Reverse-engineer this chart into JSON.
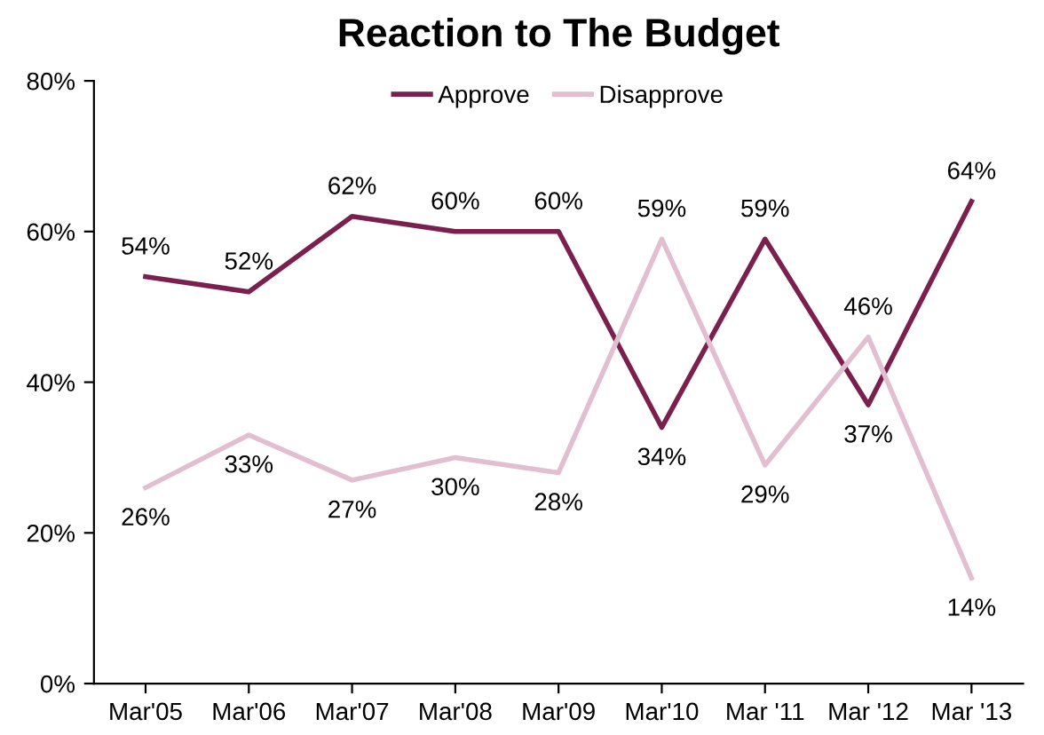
{
  "chart_data": {
    "type": "line",
    "title": "Reaction to The Budget",
    "categories": [
      "Mar'05",
      "Mar'06",
      "Mar'07",
      "Mar'08",
      "Mar'09",
      "Mar'10",
      "Mar '11",
      "Mar '12",
      "Mar '13"
    ],
    "series": [
      {
        "name": "Approve",
        "color": "#7b1f4f",
        "values": [
          54,
          52,
          62,
          60,
          60,
          34,
          59,
          37,
          64
        ],
        "value_labels": [
          "54%",
          "52%",
          "62%",
          "60%",
          "60%",
          "34%",
          "59%",
          "37%",
          "64%"
        ]
      },
      {
        "name": "Disapprove",
        "color": "#e2bfd0",
        "values": [
          26,
          33,
          27,
          30,
          28,
          59,
          29,
          46,
          14
        ],
        "value_labels": [
          "26%",
          "33%",
          "27%",
          "30%",
          "28%",
          "59%",
          "29%",
          "46%",
          "14%"
        ]
      }
    ],
    "ylim": [
      0,
      80
    ],
    "yticks": [
      {
        "value": 0,
        "label": "0%"
      },
      {
        "value": 20,
        "label": "20%"
      },
      {
        "value": 40,
        "label": "40%"
      },
      {
        "value": 60,
        "label": "60%"
      },
      {
        "value": 80,
        "label": "80%"
      }
    ],
    "legend": "top",
    "grid": false,
    "marker": "none",
    "line_style": "solid"
  }
}
